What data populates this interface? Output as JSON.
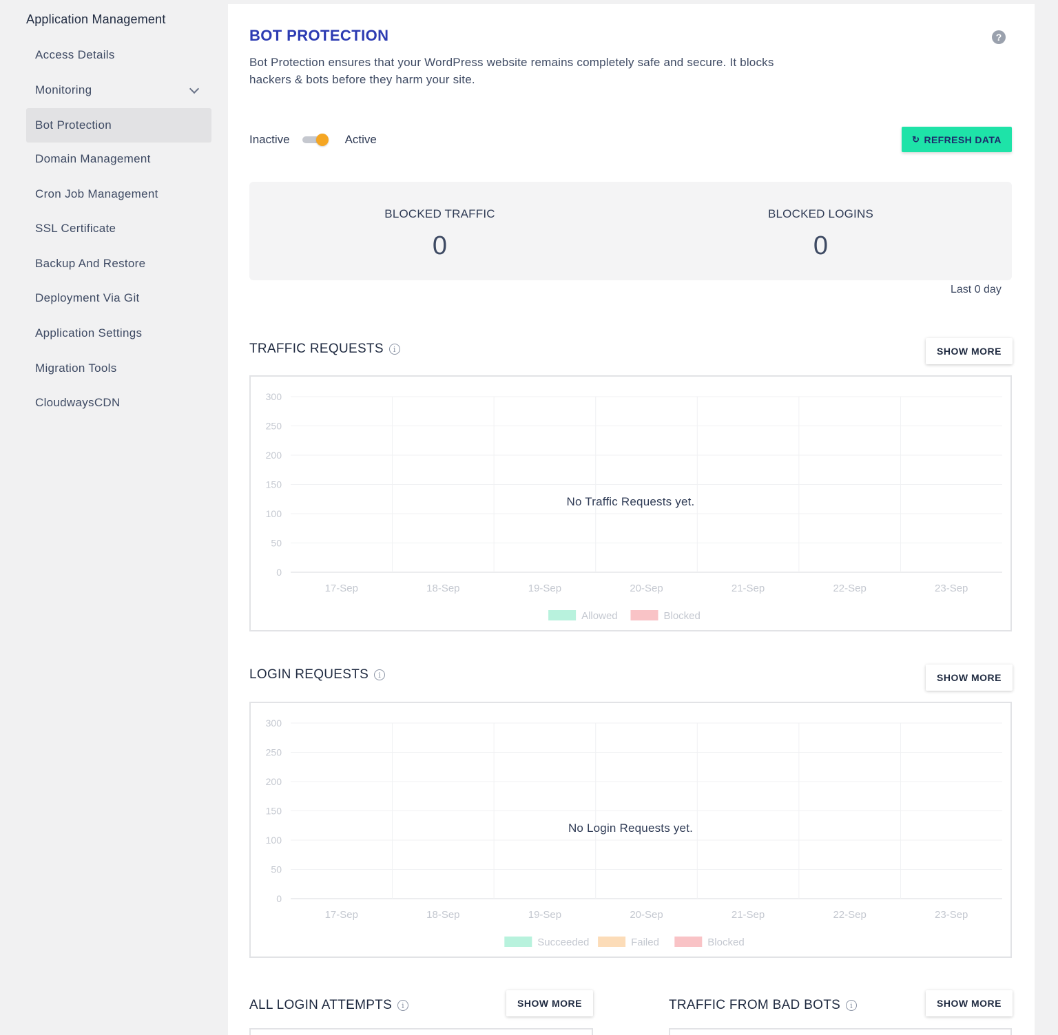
{
  "sidebar": {
    "title": "Application Management",
    "items": [
      {
        "label": "Access Details"
      },
      {
        "label": "Monitoring"
      },
      {
        "label": "Bot Protection"
      },
      {
        "label": "Domain Management"
      },
      {
        "label": "Cron Job Management"
      },
      {
        "label": "SSL Certificate"
      },
      {
        "label": "Backup And Restore"
      },
      {
        "label": "Deployment Via Git"
      },
      {
        "label": "Application Settings"
      },
      {
        "label": "Migration Tools"
      },
      {
        "label": "CloudwaysCDN"
      }
    ],
    "active_item": "Bot Protection"
  },
  "header": {
    "title": "BOT PROTECTION",
    "help_icon": "?",
    "description": "Bot Protection ensures that your WordPress website remains completely safe and secure. It blocks hackers & bots before they harm your site."
  },
  "toggle": {
    "inactive_label": "Inactive",
    "active_label": "Active",
    "state": "active"
  },
  "refresh_button": {
    "label": "REFRESH DATA",
    "icon": "refresh-icon"
  },
  "stats": {
    "blocked_traffic_label": "BLOCKED TRAFFIC",
    "blocked_traffic_value": "0",
    "blocked_logins_label": "BLOCKED LOGINS",
    "blocked_logins_value": "0",
    "period": "Last 0 day"
  },
  "traffic": {
    "title": "TRAFFIC REQUESTS",
    "show_more": "SHOW MORE",
    "empty": "No Traffic Requests yet."
  },
  "login": {
    "title": "LOGIN REQUESTS",
    "show_more": "SHOW MORE",
    "empty": "No Login Requests yet."
  },
  "bottom": {
    "left_title": "ALL LOGIN ATTEMPTS",
    "left_show_more": "SHOW MORE",
    "right_title": "TRAFFIC FROM BAD BOTS",
    "right_show_more": "SHOW MORE"
  },
  "colors": {
    "accent": "#2c3bb2",
    "refresh_button": "#1ee3a8",
    "toggle_knob": "#f5a623",
    "allowed": "#b8f2dd",
    "blocked": "#f9c3c6",
    "succeeded": "#b8f2dd",
    "failed": "#fcdcb8"
  },
  "chart_data": [
    {
      "type": "bar",
      "categories": [
        "17-Sep",
        "18-Sep",
        "19-Sep",
        "20-Sep",
        "21-Sep",
        "22-Sep",
        "23-Sep"
      ],
      "yticks": [
        "0",
        "50",
        "100",
        "150",
        "200",
        "250",
        "300"
      ],
      "ylim": [
        0,
        300
      ],
      "series": [
        {
          "name": "Allowed",
          "values": [
            0,
            0,
            0,
            0,
            0,
            0,
            0
          ],
          "color": "#b8f2dd"
        },
        {
          "name": "Blocked",
          "values": [
            0,
            0,
            0,
            0,
            0,
            0,
            0
          ],
          "color": "#f9c3c6"
        }
      ],
      "grid": true,
      "legend": "bottom"
    },
    {
      "type": "bar",
      "categories": [
        "17-Sep",
        "18-Sep",
        "19-Sep",
        "20-Sep",
        "21-Sep",
        "22-Sep",
        "23-Sep"
      ],
      "yticks": [
        "0",
        "50",
        "100",
        "150",
        "200",
        "250",
        "300"
      ],
      "ylim": [
        0,
        300
      ],
      "series": [
        {
          "name": "Succeeded",
          "values": [
            0,
            0,
            0,
            0,
            0,
            0,
            0
          ],
          "color": "#b8f2dd"
        },
        {
          "name": "Failed",
          "values": [
            0,
            0,
            0,
            0,
            0,
            0,
            0
          ],
          "color": "#fcdcb8"
        },
        {
          "name": "Blocked",
          "values": [
            0,
            0,
            0,
            0,
            0,
            0,
            0
          ],
          "color": "#f9c3c6"
        }
      ],
      "grid": true,
      "legend": "bottom"
    }
  ]
}
